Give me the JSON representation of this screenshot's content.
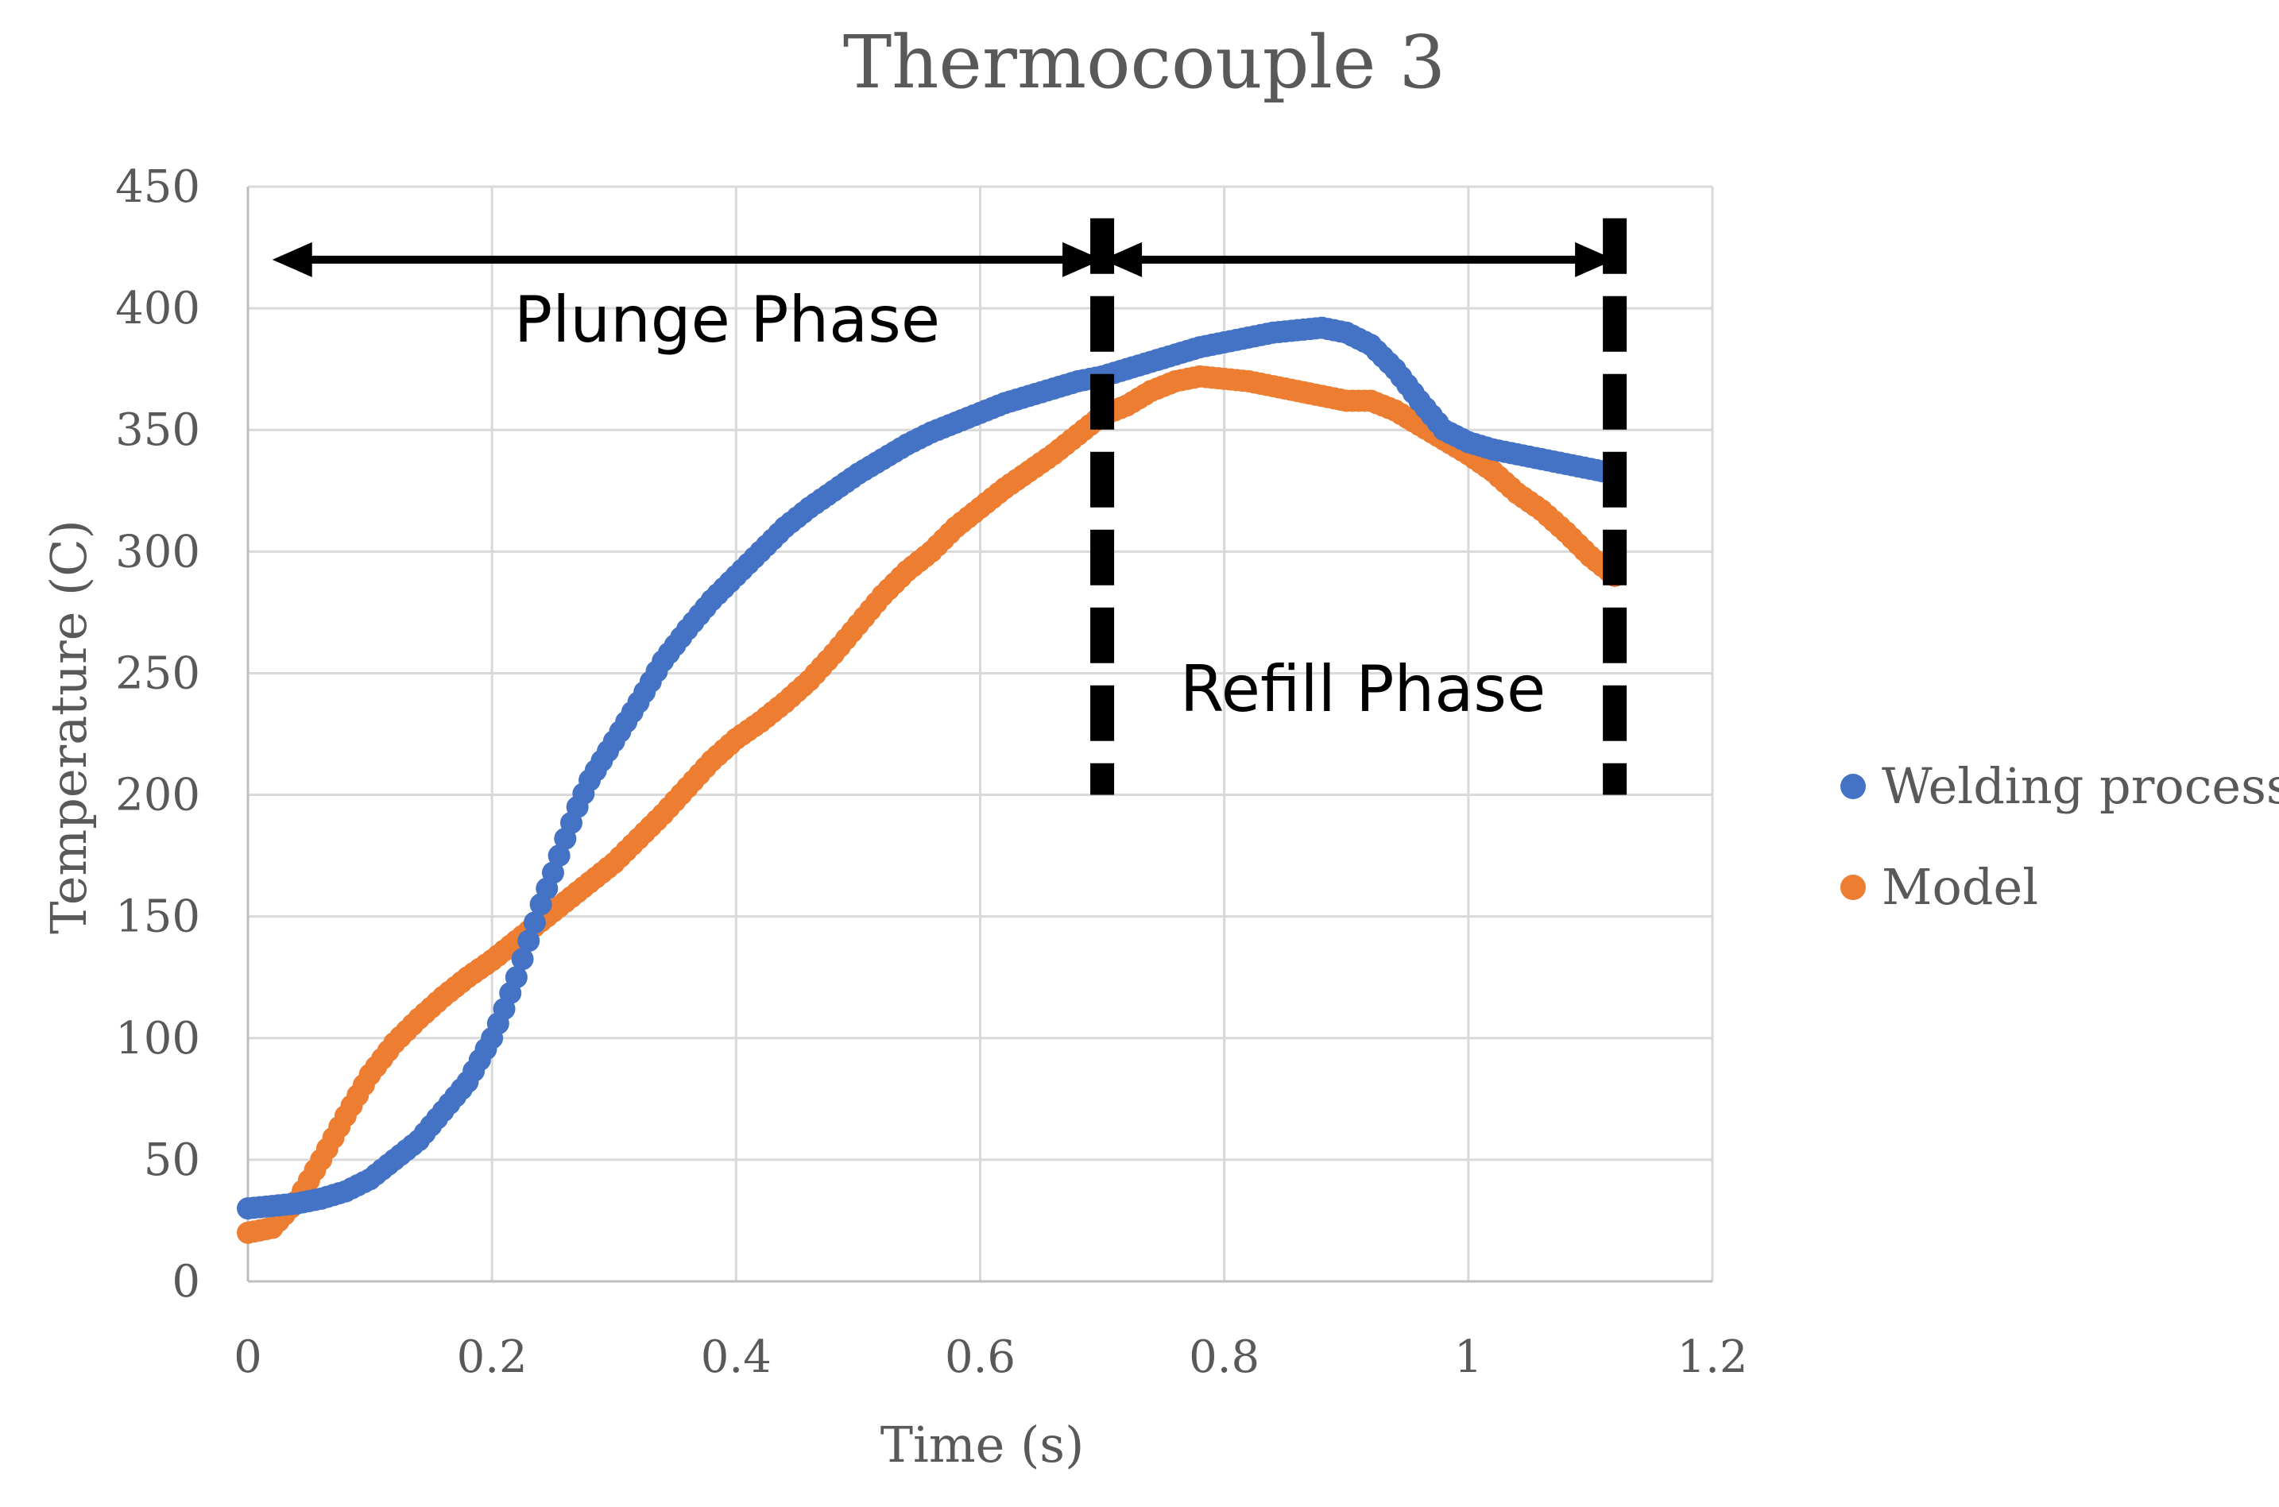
{
  "chart_data": {
    "type": "scatter",
    "title": "Thermocouple 3",
    "xlabel": "Time (s)",
    "ylabel": "Temperature  (C)",
    "xlim": [
      0,
      1.2
    ],
    "ylim": [
      0,
      450
    ],
    "xticks": [
      0,
      0.2,
      0.4,
      0.6,
      0.8,
      1,
      1.2
    ],
    "xtick_labels": [
      "0",
      "0.2",
      "0.4",
      "0.6",
      "0.8",
      "1",
      "1.2"
    ],
    "yticks": [
      0,
      50,
      100,
      150,
      200,
      250,
      300,
      350,
      400,
      450
    ],
    "ytick_labels": [
      "0",
      "50",
      "100",
      "150",
      "200",
      "250",
      "300",
      "350",
      "400",
      "450"
    ],
    "grid": true,
    "legend_position": "right",
    "series": [
      {
        "name": "Welding process",
        "color": "#4472C4",
        "x": [
          0,
          0.02,
          0.04,
          0.06,
          0.08,
          0.1,
          0.12,
          0.14,
          0.16,
          0.18,
          0.2,
          0.21,
          0.22,
          0.23,
          0.24,
          0.25,
          0.26,
          0.27,
          0.28,
          0.3,
          0.32,
          0.34,
          0.36,
          0.38,
          0.4,
          0.42,
          0.44,
          0.46,
          0.48,
          0.5,
          0.52,
          0.54,
          0.56,
          0.58,
          0.6,
          0.62,
          0.64,
          0.66,
          0.68,
          0.7,
          0.72,
          0.74,
          0.76,
          0.78,
          0.8,
          0.82,
          0.84,
          0.86,
          0.88,
          0.9,
          0.92,
          0.94,
          0.96,
          0.98,
          1.0,
          1.02,
          1.04,
          1.06,
          1.08,
          1.1,
          1.12
        ],
        "y": [
          30,
          31,
          32,
          34,
          37,
          42,
          50,
          58,
          70,
          82,
          100,
          112,
          125,
          140,
          155,
          168,
          182,
          195,
          206,
          222,
          238,
          255,
          268,
          280,
          290,
          300,
          310,
          318,
          325,
          332,
          338,
          344,
          349,
          353,
          357,
          361,
          364,
          367,
          370,
          372,
          375,
          378,
          381,
          384,
          386,
          388,
          390,
          391,
          392,
          390,
          385,
          375,
          362,
          350,
          345,
          342,
          340,
          338,
          336,
          334,
          332
        ]
      },
      {
        "name": "Model",
        "color": "#ED7D31",
        "x": [
          0,
          0.02,
          0.04,
          0.06,
          0.08,
          0.1,
          0.12,
          0.14,
          0.16,
          0.18,
          0.2,
          0.22,
          0.24,
          0.26,
          0.28,
          0.3,
          0.32,
          0.34,
          0.36,
          0.38,
          0.4,
          0.42,
          0.44,
          0.46,
          0.48,
          0.5,
          0.52,
          0.54,
          0.56,
          0.58,
          0.6,
          0.62,
          0.64,
          0.66,
          0.68,
          0.7,
          0.72,
          0.74,
          0.76,
          0.78,
          0.8,
          0.82,
          0.84,
          0.86,
          0.88,
          0.9,
          0.92,
          0.94,
          0.96,
          0.98,
          1.0,
          1.02,
          1.04,
          1.06,
          1.08,
          1.1,
          1.12
        ],
        "y": [
          20,
          22,
          33,
          50,
          68,
          85,
          98,
          108,
          117,
          125,
          132,
          140,
          148,
          156,
          164,
          172,
          182,
          192,
          203,
          214,
          223,
          230,
          238,
          247,
          258,
          270,
          282,
          292,
          300,
          310,
          318,
          326,
          333,
          340,
          348,
          356,
          360,
          366,
          370,
          372,
          371,
          370,
          368,
          366,
          364,
          362,
          362,
          358,
          352,
          346,
          340,
          333,
          324,
          317,
          308,
          298,
          290
        ]
      }
    ],
    "annotations": [
      {
        "text": "Plunge Phase",
        "x_from": 0.02,
        "x_to": 0.7,
        "y": 420
      },
      {
        "text": "Refill Phase",
        "x_from": 0.7,
        "x_to": 1.12,
        "y": 420
      }
    ],
    "phase_boundaries": [
      0.7,
      1.12
    ],
    "phase_boundary_range": [
      200,
      437
    ]
  }
}
